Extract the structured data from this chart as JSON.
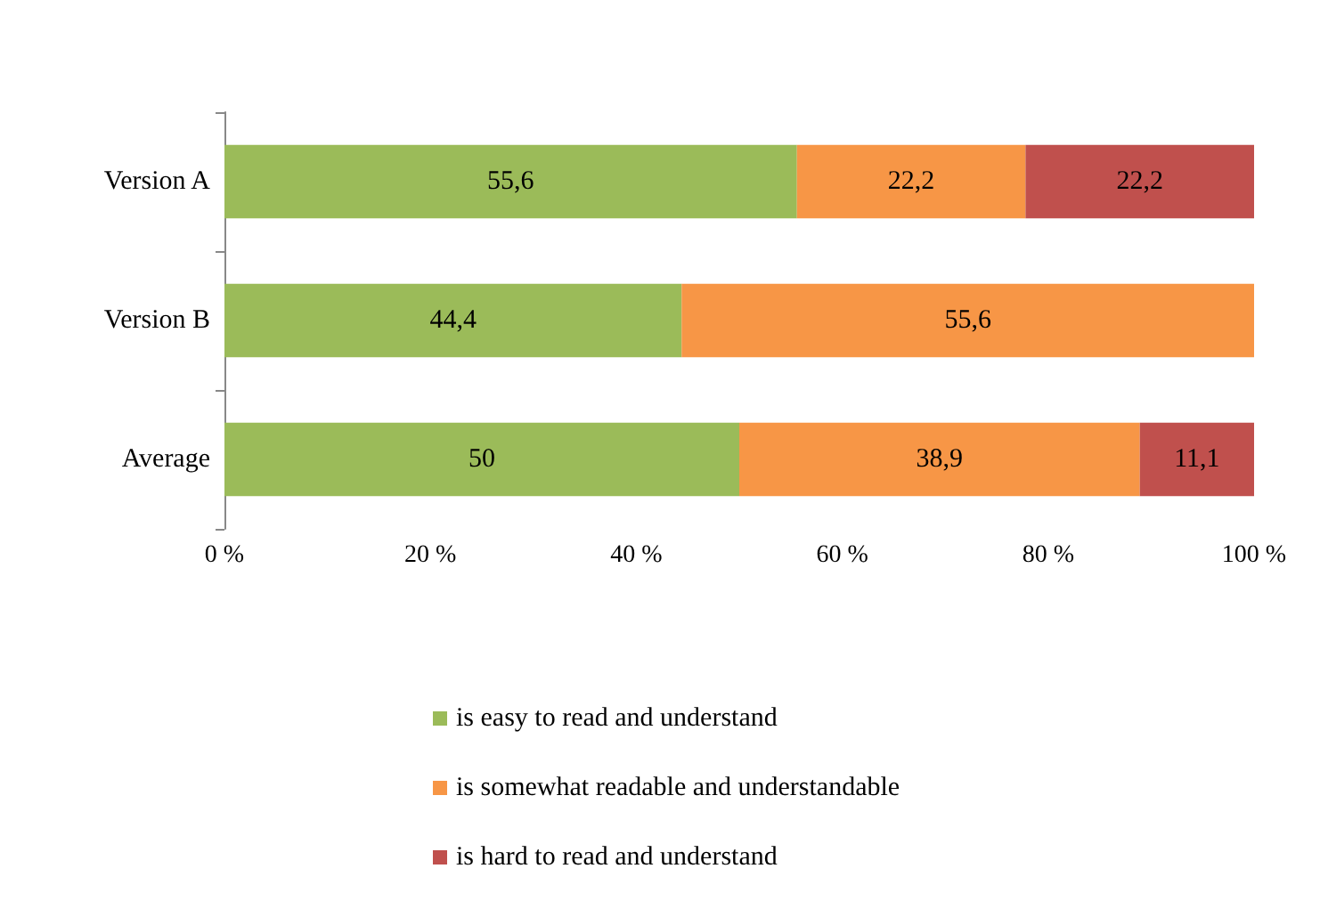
{
  "chart_data": {
    "type": "bar",
    "orientation": "horizontal",
    "stacked": true,
    "categories": [
      "Version A",
      "Version B",
      "Average"
    ],
    "series": [
      {
        "name": "is easy to read and understand",
        "color": "#9bbb59",
        "values": [
          55.6,
          44.4,
          50
        ],
        "value_labels": [
          "55,6",
          "44,4",
          "50"
        ]
      },
      {
        "name": "is somewhat readable and understandable",
        "color": "#f79646",
        "values": [
          22.2,
          55.6,
          38.9
        ],
        "value_labels": [
          "22,2",
          "55,6",
          "38,9"
        ]
      },
      {
        "name": "is hard to read and understand",
        "color": "#c0504d",
        "values": [
          22.2,
          null,
          11.1
        ],
        "value_labels": [
          "22,2",
          null,
          "11,1"
        ]
      }
    ],
    "xlim": [
      0,
      100
    ],
    "xticks": [
      {
        "value": 0,
        "label": "0 %"
      },
      {
        "value": 20,
        "label": "20 %"
      },
      {
        "value": 40,
        "label": "40 %"
      },
      {
        "value": 60,
        "label": "60 %"
      },
      {
        "value": 80,
        "label": "80 %"
      },
      {
        "value": 100,
        "label": "100 %"
      }
    ],
    "grid": false,
    "legend": "bottom"
  }
}
